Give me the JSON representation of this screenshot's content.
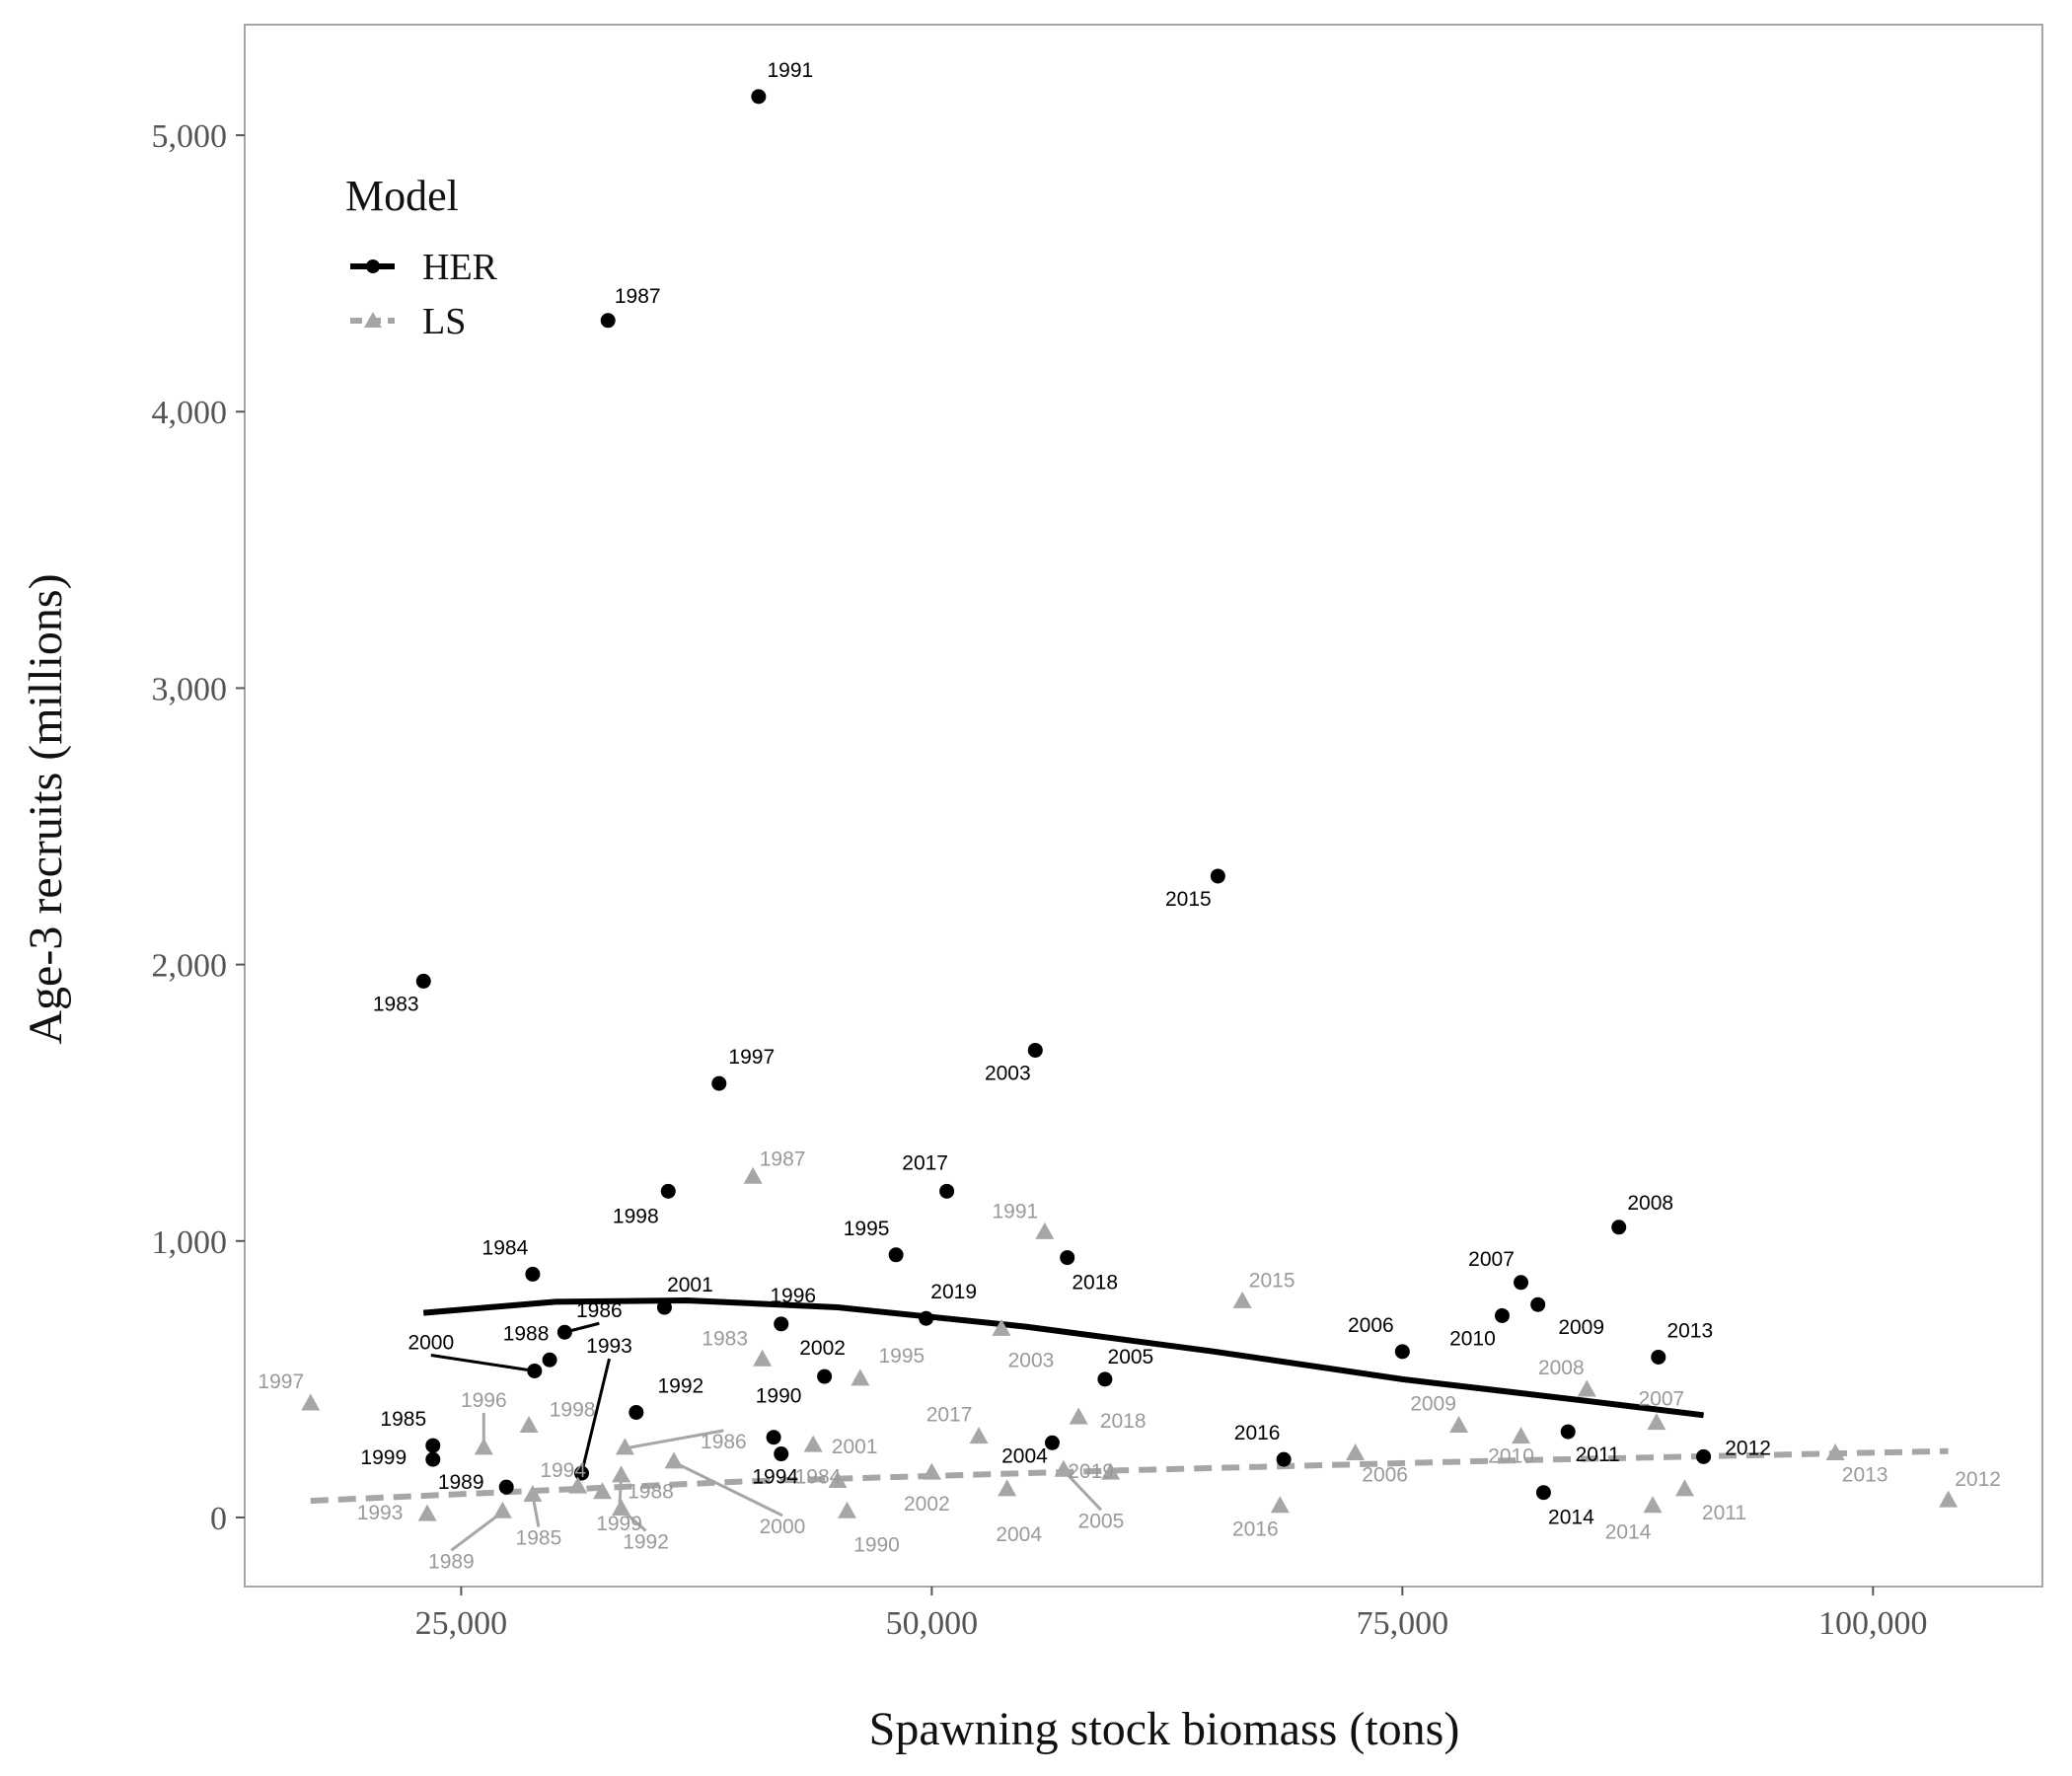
{
  "chart_data": {
    "type": "scatter",
    "xlabel": "Spawning stock biomass (tons)",
    "ylabel": "Age-3 recruits (millions)",
    "xlim": [
      13500,
      109000
    ],
    "ylim": [
      -250,
      5400
    ],
    "x_ticks": [
      25000,
      50000,
      75000,
      100000
    ],
    "x_tick_labels": [
      "25,000",
      "50,000",
      "75,000",
      "100,000"
    ],
    "y_ticks": [
      0,
      1000,
      2000,
      3000,
      4000,
      5000
    ],
    "y_tick_labels": [
      "0",
      "1,000",
      "2,000",
      "3,000",
      "4,000",
      "5,000"
    ],
    "grid": false,
    "legend": {
      "title": "Model",
      "position": "top-left",
      "entries": [
        {
          "label": "HER",
          "color": "#000000",
          "marker": "circle",
          "line": "solid"
        },
        {
          "label": "LS",
          "color": "#a6a6a6",
          "marker": "triangle",
          "line": "dashed"
        }
      ]
    },
    "series": [
      {
        "name": "HER",
        "color": "#000000",
        "marker": "circle",
        "points": [
          {
            "year": "1983",
            "x": 23000,
            "y": 1940
          },
          {
            "year": "1984",
            "x": 28800,
            "y": 880
          },
          {
            "year": "1985",
            "x": 23500,
            "y": 260
          },
          {
            "year": "1986",
            "x": 30500,
            "y": 670
          },
          {
            "year": "1987",
            "x": 32800,
            "y": 4330
          },
          {
            "year": "1988",
            "x": 29700,
            "y": 570
          },
          {
            "year": "1989",
            "x": 27400,
            "y": 110
          },
          {
            "year": "1990",
            "x": 41600,
            "y": 290
          },
          {
            "year": "1991",
            "x": 40800,
            "y": 5140
          },
          {
            "year": "1992",
            "x": 34300,
            "y": 380
          },
          {
            "year": "1993",
            "x": 31400,
            "y": 160
          },
          {
            "year": "1994",
            "x": 42000,
            "y": 230
          },
          {
            "year": "1995",
            "x": 48100,
            "y": 950
          },
          {
            "year": "1996",
            "x": 42000,
            "y": 700
          },
          {
            "year": "1997",
            "x": 38700,
            "y": 1570
          },
          {
            "year": "1998",
            "x": 36000,
            "y": 1180
          },
          {
            "year": "1999",
            "x": 23500,
            "y": 210
          },
          {
            "year": "2000",
            "x": 28900,
            "y": 530
          },
          {
            "year": "2001",
            "x": 35800,
            "y": 760
          },
          {
            "year": "2002",
            "x": 44300,
            "y": 510
          },
          {
            "year": "2003",
            "x": 55500,
            "y": 1690
          },
          {
            "year": "2004",
            "x": 56400,
            "y": 270
          },
          {
            "year": "2005",
            "x": 59200,
            "y": 500
          },
          {
            "year": "2006",
            "x": 75000,
            "y": 600
          },
          {
            "year": "2007",
            "x": 81300,
            "y": 850
          },
          {
            "year": "2008",
            "x": 86500,
            "y": 1050
          },
          {
            "year": "2009",
            "x": 82200,
            "y": 770
          },
          {
            "year": "2010",
            "x": 80300,
            "y": 730
          },
          {
            "year": "2011",
            "x": 83800,
            "y": 310
          },
          {
            "year": "2012",
            "x": 91000,
            "y": 220
          },
          {
            "year": "2013",
            "x": 88600,
            "y": 580
          },
          {
            "year": "2014",
            "x": 82500,
            "y": 90
          },
          {
            "year": "2015",
            "x": 65200,
            "y": 2320
          },
          {
            "year": "2016",
            "x": 68700,
            "y": 210
          },
          {
            "year": "2017",
            "x": 50800,
            "y": 1180
          },
          {
            "year": "2018",
            "x": 57200,
            "y": 940
          },
          {
            "year": "2019",
            "x": 49700,
            "y": 720
          }
        ],
        "trend": [
          {
            "x": 23000,
            "y": 740
          },
          {
            "x": 30000,
            "y": 780
          },
          {
            "x": 37000,
            "y": 785
          },
          {
            "x": 45000,
            "y": 760
          },
          {
            "x": 55000,
            "y": 690
          },
          {
            "x": 65000,
            "y": 600
          },
          {
            "x": 75000,
            "y": 500
          },
          {
            "x": 85000,
            "y": 420
          },
          {
            "x": 91000,
            "y": 370
          }
        ]
      },
      {
        "name": "LS",
        "color": "#a6a6a6",
        "marker": "triangle",
        "points": [
          {
            "year": "1983",
            "x": 41000,
            "y": 570
          },
          {
            "year": "1984",
            "x": 45000,
            "y": 130
          },
          {
            "year": "1985",
            "x": 28800,
            "y": 80
          },
          {
            "year": "1986",
            "x": 33700,
            "y": 250
          },
          {
            "year": "1987",
            "x": 40500,
            "y": 1230
          },
          {
            "year": "1988",
            "x": 32500,
            "y": 90
          },
          {
            "year": "1989",
            "x": 27200,
            "y": 20
          },
          {
            "year": "1990",
            "x": 45500,
            "y": 20
          },
          {
            "year": "1991",
            "x": 56000,
            "y": 1030
          },
          {
            "year": "1992",
            "x": 33500,
            "y": 30
          },
          {
            "year": "1993",
            "x": 23200,
            "y": 10
          },
          {
            "year": "1994",
            "x": 31200,
            "y": 110
          },
          {
            "year": "1995",
            "x": 46200,
            "y": 500
          },
          {
            "year": "1996",
            "x": 26200,
            "y": 250
          },
          {
            "year": "1997",
            "x": 17000,
            "y": 410
          },
          {
            "year": "1998",
            "x": 28600,
            "y": 330
          },
          {
            "year": "1999",
            "x": 33500,
            "y": 150
          },
          {
            "year": "2000",
            "x": 36300,
            "y": 200
          },
          {
            "year": "2001",
            "x": 43700,
            "y": 260
          },
          {
            "year": "2002",
            "x": 50000,
            "y": 160
          },
          {
            "year": "2003",
            "x": 53700,
            "y": 680
          },
          {
            "year": "2004",
            "x": 54000,
            "y": 100
          },
          {
            "year": "2005",
            "x": 57000,
            "y": 170
          },
          {
            "year": "2006",
            "x": 72500,
            "y": 230
          },
          {
            "year": "2007",
            "x": 88500,
            "y": 340
          },
          {
            "year": "2008",
            "x": 84800,
            "y": 460
          },
          {
            "year": "2009",
            "x": 78000,
            "y": 330
          },
          {
            "year": "2010",
            "x": 81300,
            "y": 290
          },
          {
            "year": "2011",
            "x": 90000,
            "y": 100
          },
          {
            "year": "2012",
            "x": 104000,
            "y": 60
          },
          {
            "year": "2013",
            "x": 98000,
            "y": 230
          },
          {
            "year": "2014",
            "x": 88300,
            "y": 40
          },
          {
            "year": "2015",
            "x": 66500,
            "y": 780
          },
          {
            "year": "2016",
            "x": 68500,
            "y": 40
          },
          {
            "year": "2017",
            "x": 52500,
            "y": 290
          },
          {
            "year": "2018",
            "x": 57800,
            "y": 360
          },
          {
            "year": "2019",
            "x": 59500,
            "y": 160
          }
        ],
        "trend": [
          {
            "x": 17000,
            "y": 60
          },
          {
            "x": 40000,
            "y": 130
          },
          {
            "x": 60000,
            "y": 170
          },
          {
            "x": 80000,
            "y": 205
          },
          {
            "x": 104000,
            "y": 240
          }
        ]
      }
    ]
  }
}
